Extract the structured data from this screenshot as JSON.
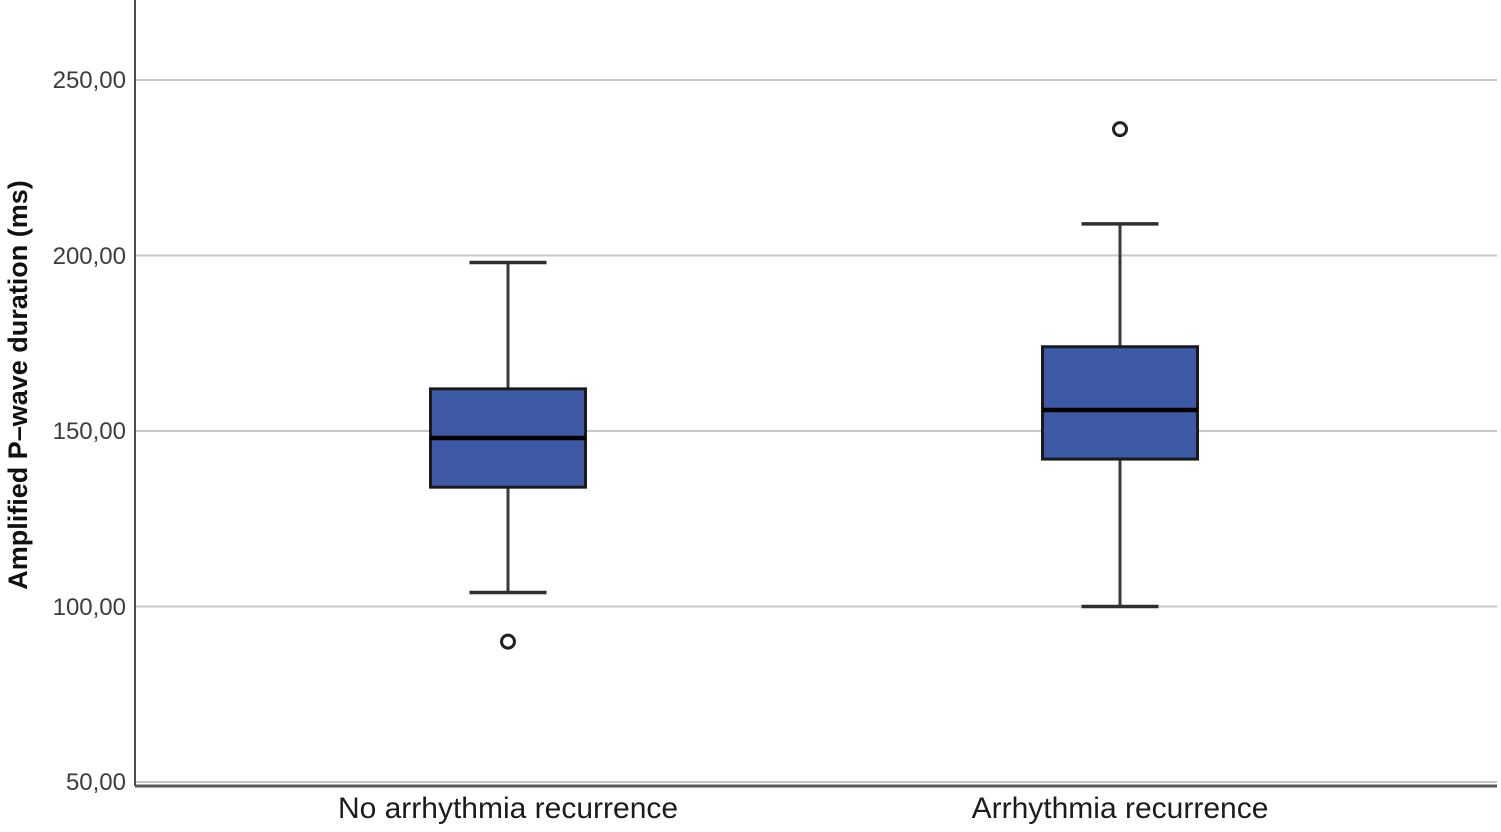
{
  "figure": {
    "background": "#ffffff"
  },
  "chart_data": {
    "type": "boxplot",
    "title": "",
    "ylabel": "Amplified P–wave duration (ms)",
    "xlabel": "",
    "categories": [
      "No arrhythmia recurrence",
      "Arrhythmia recurrence"
    ],
    "series": [
      {
        "category": "No arrhythmia recurrence",
        "whisker_low": 104,
        "q1": 134,
        "median": 148,
        "q3": 162,
        "whisker_high": 198,
        "outliers": [
          90
        ]
      },
      {
        "category": "Arrhythmia recurrence",
        "whisker_low": 100,
        "q1": 142,
        "median": 156,
        "q3": 174,
        "whisker_high": 209,
        "outliers": [
          236
        ]
      }
    ],
    "yticks": [
      {
        "value": 50,
        "label": "50,00"
      },
      {
        "value": 100,
        "label": "100,00"
      },
      {
        "value": 150,
        "label": "150,00"
      },
      {
        "value": 200,
        "label": "200,00"
      },
      {
        "value": 250,
        "label": "250,00"
      }
    ],
    "ylim": [
      50,
      250
    ],
    "grid": "horizontal",
    "legend": "none",
    "colors": {
      "box_fill": "#3E59A6",
      "box_border": "#1a1a1a",
      "median_line": "#000000",
      "whisker": "#3a3a3a",
      "gridline": "#c8c8c8",
      "axis": "#595959",
      "outlier_stroke": "#222222",
      "outlier_fill": "#ffffff"
    }
  }
}
